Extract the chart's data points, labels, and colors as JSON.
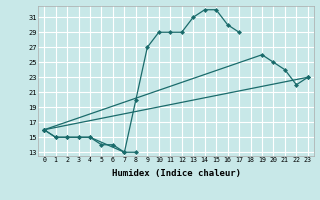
{
  "xlabel": "Humidex (Indice chaleur)",
  "bg_color": "#c8e8e8",
  "grid_color": "#ffffff",
  "line_color": "#1a6b6b",
  "xlim": [
    -0.5,
    23.5
  ],
  "ylim": [
    12.5,
    32.5
  ],
  "yticks": [
    13,
    15,
    17,
    19,
    21,
    23,
    25,
    27,
    29,
    31
  ],
  "xticks": [
    0,
    1,
    2,
    3,
    4,
    5,
    6,
    7,
    8,
    9,
    10,
    11,
    12,
    13,
    14,
    15,
    16,
    17,
    18,
    19,
    20,
    21,
    22,
    23
  ],
  "series": [
    {
      "x": [
        0,
        1,
        2,
        3,
        4,
        5,
        6,
        7,
        8
      ],
      "y": [
        16,
        15,
        15,
        15,
        15,
        14,
        14,
        13,
        13
      ]
    },
    {
      "x": [
        0,
        1,
        2,
        3,
        4,
        7,
        8,
        9,
        10,
        11,
        12,
        13,
        14,
        15,
        16,
        17
      ],
      "y": [
        16,
        15,
        15,
        15,
        15,
        13,
        20,
        27,
        29,
        29,
        29,
        31,
        32,
        32,
        30,
        29
      ]
    },
    {
      "x": [
        0,
        19,
        20,
        21,
        22,
        23
      ],
      "y": [
        16,
        26,
        25,
        24,
        22,
        23
      ]
    },
    {
      "x": [
        0,
        23
      ],
      "y": [
        16,
        23
      ]
    }
  ]
}
